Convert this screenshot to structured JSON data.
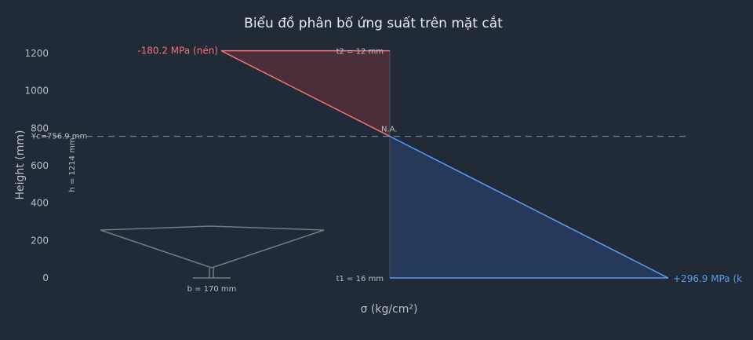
{
  "chart_data": {
    "type": "area",
    "title": "Biểu đồ phân bố ứng suất trên mặt cắt",
    "xlabel": "σ (kg/cm²)",
    "ylabel": "Height (mm)",
    "ylim": [
      -40,
      1260
    ],
    "xlim": [
      -180.2,
      296.9
    ],
    "yticks": [
      0,
      200,
      400,
      600,
      800,
      1000,
      1200
    ],
    "grid": false,
    "series": [
      {
        "name": "compression",
        "color": "#f07178",
        "fill": "#4a2f3a",
        "points": [
          {
            "x": -180.2,
            "y": 1214
          },
          {
            "x": 0,
            "y": 756.9
          }
        ]
      },
      {
        "name": "tension",
        "color": "#5b9cf0",
        "fill": "#253a5a",
        "points": [
          {
            "x": 0,
            "y": 756.9
          },
          {
            "x": 296.9,
            "y": 0
          }
        ]
      }
    ],
    "neutral_axis": {
      "y": 756.9,
      "label": "N.A.",
      "yc_label": "Yc=756.9 mm"
    },
    "annotations": {
      "compression_label": "-180.2 MPa (nén)",
      "tension_label": "+296.9 MPa (k",
      "top_flange_label": "t2 = 12 mm",
      "bottom_flange_label": "t1 = 16 mm",
      "height_label": "h = 1214 mm",
      "width_label": "b = 170 mm"
    }
  },
  "colors": {
    "background": "#212a37",
    "compression": "#f07178",
    "tension": "#5b9cf0",
    "axis_text": "#b8bfc8",
    "section_outline": "#737b86",
    "title": "#e9edf2"
  }
}
